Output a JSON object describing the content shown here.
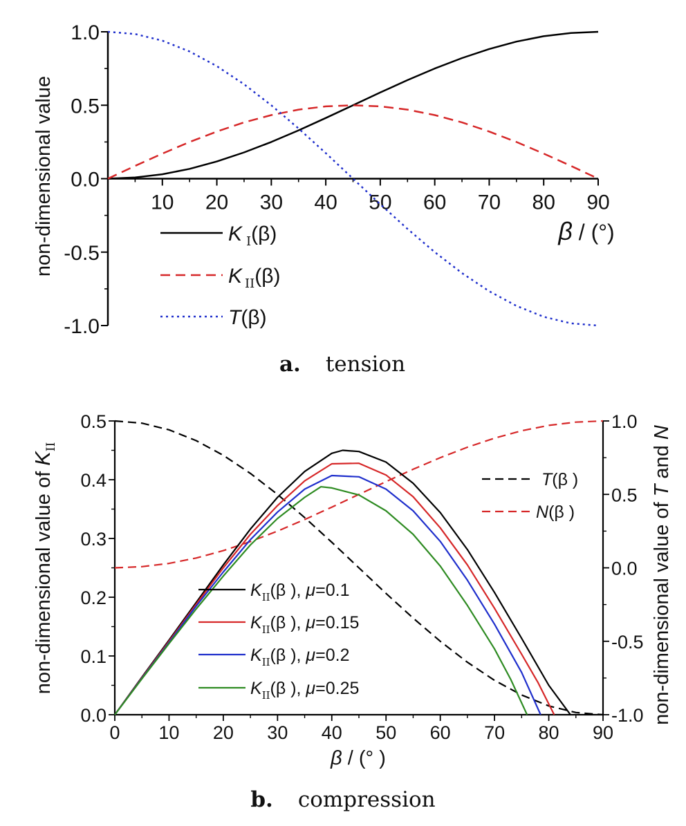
{
  "chart_data": [
    {
      "id": "a",
      "type": "line",
      "caption_letter": "a.",
      "caption_text": "tension",
      "xlabel": "β / (°)",
      "ylabel": "non-dimensional value",
      "xlim": [
        0,
        90
      ],
      "ylim": [
        -1.0,
        1.0
      ],
      "xticks": [
        10,
        20,
        30,
        40,
        50,
        60,
        70,
        80,
        90
      ],
      "xtick_labels": [
        "10",
        "20",
        "30",
        "40",
        "50",
        "60",
        "70",
        "80",
        "90"
      ],
      "yticks": [
        -1.0,
        -0.5,
        0.0,
        0.5,
        1.0
      ],
      "ytick_labels": [
        "-1.0",
        "-0.5",
        "0.0",
        "0.5",
        "1.0"
      ],
      "grid": false,
      "legend_position": "left, below x-axis",
      "x": [
        0,
        5,
        10,
        15,
        20,
        25,
        30,
        35,
        40,
        45,
        50,
        55,
        60,
        65,
        70,
        75,
        80,
        85,
        90
      ],
      "series": [
        {
          "key": "KI",
          "legend_parts": [
            "K",
            "I",
            "(β)"
          ],
          "color": "#000000",
          "dash": "solid",
          "values": [
            0.0,
            0.008,
            0.03,
            0.067,
            0.117,
            0.179,
            0.25,
            0.329,
            0.413,
            0.5,
            0.587,
            0.671,
            0.75,
            0.821,
            0.883,
            0.933,
            0.97,
            0.992,
            1.0
          ]
        },
        {
          "key": "KII",
          "legend_parts": [
            "K",
            "II",
            "(β)"
          ],
          "color": "#d62728",
          "dash": "dashed",
          "values": [
            0.0,
            0.087,
            0.171,
            0.25,
            0.321,
            0.383,
            0.433,
            0.47,
            0.492,
            0.5,
            0.492,
            0.47,
            0.433,
            0.383,
            0.321,
            0.25,
            0.171,
            0.087,
            0.0
          ]
        },
        {
          "key": "T",
          "legend_parts": [
            "T",
            "",
            "(β)"
          ],
          "color": "#1f2fcc",
          "dash": "dotted",
          "values": [
            1.0,
            0.985,
            0.94,
            0.866,
            0.766,
            0.643,
            0.5,
            0.342,
            0.174,
            0.0,
            -0.174,
            -0.342,
            -0.5,
            -0.643,
            -0.766,
            -0.866,
            -0.94,
            -0.985,
            -1.0
          ]
        }
      ]
    },
    {
      "id": "b",
      "type": "line",
      "caption_letter": "b.",
      "caption_text": "compression",
      "xlabel": "β / (° )",
      "ylabel_left_parts": [
        "non-dimensional value of ",
        "K",
        "II"
      ],
      "ylabel_right_parts": [
        "non-dimensional value of ",
        "T",
        " and ",
        "N"
      ],
      "xlim": [
        0,
        90
      ],
      "ylim_left": [
        0.0,
        0.5
      ],
      "ylim_right": [
        -1.0,
        1.0
      ],
      "xticks": [
        0,
        10,
        20,
        30,
        40,
        50,
        60,
        70,
        80,
        90
      ],
      "xtick_labels": [
        "0",
        "10",
        "20",
        "30",
        "40",
        "50",
        "60",
        "70",
        "80",
        "90"
      ],
      "yticks_left": [
        0.0,
        0.1,
        0.2,
        0.3,
        0.4,
        0.5
      ],
      "ytick_labels_left": [
        "0.0",
        "0.1",
        "0.2",
        "0.3",
        "0.4",
        "0.5"
      ],
      "yticks_right": [
        -1.0,
        -0.5,
        0.0,
        0.5,
        1.0
      ],
      "ytick_labels_right": [
        "-1.0",
        "-0.5",
        "0.0",
        "0.5",
        "1.0"
      ],
      "grid": false,
      "legend_right_position": "top-right",
      "legend_left_position": "lower-left",
      "right_series": [
        {
          "key": "T",
          "legend_parts": [
            "T",
            "(β )"
          ],
          "color": "#000000",
          "dash": "dashed",
          "x": [
            0,
            5,
            10,
            15,
            20,
            25,
            30,
            35,
            40,
            45,
            50,
            55,
            60,
            65,
            70,
            75,
            80,
            85,
            90
          ],
          "values": [
            1.0,
            0.985,
            0.94,
            0.866,
            0.766,
            0.643,
            0.5,
            0.342,
            0.174,
            0.0,
            -0.174,
            -0.342,
            -0.5,
            -0.643,
            -0.766,
            -0.866,
            -0.94,
            -0.985,
            -1.0
          ]
        },
        {
          "key": "N",
          "legend_parts": [
            "N",
            "(β )"
          ],
          "color": "#d62728",
          "dash": "dashed",
          "x": [
            0,
            5,
            10,
            15,
            20,
            25,
            30,
            35,
            40,
            45,
            50,
            55,
            60,
            65,
            70,
            75,
            80,
            85,
            90
          ],
          "values": [
            0.0,
            0.008,
            0.03,
            0.067,
            0.117,
            0.179,
            0.25,
            0.329,
            0.413,
            0.5,
            0.587,
            0.671,
            0.75,
            0.821,
            0.883,
            0.933,
            0.97,
            0.992,
            1.0
          ]
        }
      ],
      "left_series": [
        {
          "key": "KII_mu_0.1",
          "legend_parts": [
            "K",
            "II",
            "(β ),  ",
            "μ",
            "=0.1"
          ],
          "color": "#000000",
          "dash": "solid",
          "x": [
            0,
            5,
            10,
            15,
            20,
            25,
            30,
            35,
            40,
            42,
            45,
            50,
            55,
            60,
            65,
            70,
            75,
            80,
            84
          ],
          "values": [
            0.0,
            0.064,
            0.127,
            0.191,
            0.255,
            0.316,
            0.37,
            0.414,
            0.445,
            0.45,
            0.448,
            0.43,
            0.394,
            0.344,
            0.281,
            0.208,
            0.13,
            0.05,
            0.0
          ]
        },
        {
          "key": "KII_mu_0.15",
          "legend_parts": [
            "K",
            "II",
            "(β ),  ",
            "μ",
            "=0.15"
          ],
          "color": "#d62728",
          "dash": "solid",
          "x": [
            0,
            5,
            10,
            15,
            20,
            25,
            30,
            35,
            40,
            45,
            50,
            55,
            60,
            65,
            70,
            75,
            78,
            81
          ],
          "values": [
            0.0,
            0.063,
            0.125,
            0.188,
            0.25,
            0.307,
            0.356,
            0.398,
            0.427,
            0.428,
            0.408,
            0.371,
            0.318,
            0.255,
            0.181,
            0.103,
            0.055,
            0.0
          ]
        },
        {
          "key": "KII_mu_0.2",
          "legend_parts": [
            "K",
            "II",
            "(β ),  ",
            "μ",
            "=0.2"
          ],
          "color": "#1f2fcc",
          "dash": "solid",
          "x": [
            0,
            5,
            10,
            15,
            20,
            25,
            30,
            35,
            40,
            45,
            50,
            55,
            60,
            65,
            70,
            75,
            78.5
          ],
          "values": [
            0.0,
            0.062,
            0.123,
            0.185,
            0.243,
            0.298,
            0.345,
            0.384,
            0.407,
            0.405,
            0.384,
            0.347,
            0.295,
            0.229,
            0.154,
            0.072,
            0.0
          ]
        },
        {
          "key": "KII_mu_0.25",
          "legend_parts": [
            "K",
            "II",
            "(β ),  ",
            "μ",
            "=0.25"
          ],
          "color": "#2e8b22",
          "dash": "solid",
          "x": [
            0,
            5,
            10,
            15,
            20,
            25,
            30,
            35,
            38,
            40,
            45,
            50,
            55,
            60,
            65,
            70,
            73,
            76
          ],
          "values": [
            0.0,
            0.061,
            0.121,
            0.18,
            0.236,
            0.289,
            0.334,
            0.37,
            0.388,
            0.386,
            0.374,
            0.347,
            0.307,
            0.253,
            0.186,
            0.112,
            0.06,
            0.0
          ]
        }
      ]
    }
  ]
}
